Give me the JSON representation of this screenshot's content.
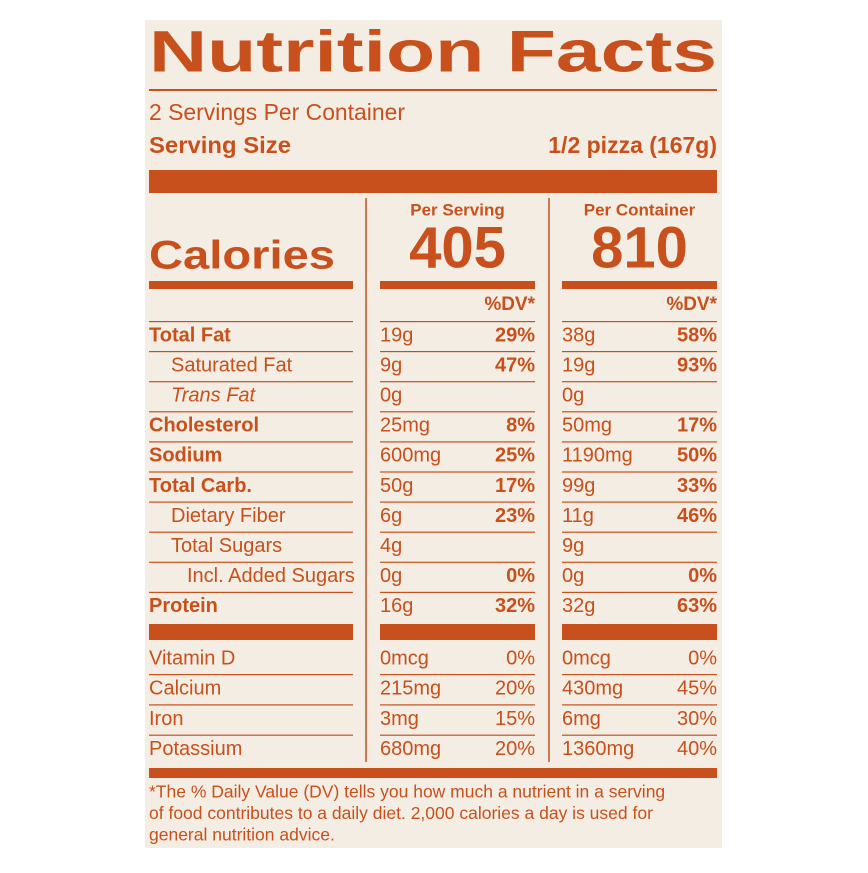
{
  "title": "Nutrition Facts",
  "servings": "2 Servings Per Container",
  "serving_size_label": "Serving Size",
  "serving_size": "1/2 pizza (167g)",
  "calories_label": "Calories",
  "columns": [
    {
      "header": "Per Serving",
      "calories": "405"
    },
    {
      "header": "Per Container",
      "calories": "810"
    }
  ],
  "dv_header": "%DV*",
  "nutrients": [
    {
      "name": "Total Fat",
      "values": [
        [
          "19g",
          "29%"
        ],
        [
          "38g",
          "58%"
        ]
      ]
    },
    {
      "name": "Saturated Fat",
      "values": [
        [
          "9g",
          "47%"
        ],
        [
          "19g",
          "93%"
        ]
      ]
    },
    {
      "name": "Trans Fat",
      "values": [
        [
          "0g"
        ],
        [
          "0g"
        ]
      ]
    },
    {
      "name": "Cholesterol",
      "values": [
        [
          "25mg",
          "8%"
        ],
        [
          "50mg",
          "17%"
        ]
      ]
    },
    {
      "name": "Sodium",
      "values": [
        [
          "600mg",
          "25%"
        ],
        [
          "1190mg",
          "50%"
        ]
      ]
    },
    {
      "name": "Total Carb.",
      "values": [
        [
          "50g",
          "17%"
        ],
        [
          "99g",
          "33%"
        ]
      ]
    },
    {
      "name": "Dietary Fiber",
      "values": [
        [
          "6g",
          "23%"
        ],
        [
          "11g",
          "46%"
        ]
      ]
    },
    {
      "name": "Total Sugars",
      "values": [
        [
          "4g"
        ],
        [
          "9g"
        ]
      ]
    },
    {
      "name": "Incl. Added Sugars",
      "values": [
        [
          "0g",
          "0%"
        ],
        [
          "0g",
          "0%"
        ]
      ]
    },
    {
      "name": "Protein",
      "values": [
        [
          "16g",
          "32%"
        ],
        [
          "32g",
          "63%"
        ]
      ]
    }
  ],
  "vitamins": [
    {
      "name": "Vitamin D",
      "values": [
        [
          "0mcg",
          "0%"
        ],
        [
          "0mcg",
          "0%"
        ]
      ]
    },
    {
      "name": "Calcium",
      "values": [
        [
          "215mg",
          "20%"
        ],
        [
          "430mg",
          "45%"
        ]
      ]
    },
    {
      "name": "Iron",
      "values": [
        [
          "3mg",
          "15%"
        ],
        [
          "6mg",
          "30%"
        ]
      ]
    },
    {
      "name": "Potassium",
      "values": [
        [
          "680mg",
          "20%"
        ],
        [
          "1360mg",
          "40%"
        ]
      ]
    }
  ],
  "footnote": [
    "*The % Daily Value (DV) tells you how much a nutrient in a serving",
    "of food contributes to a daily diet. 2,000 calories a day is used for",
    "general nutrition advice."
  ]
}
